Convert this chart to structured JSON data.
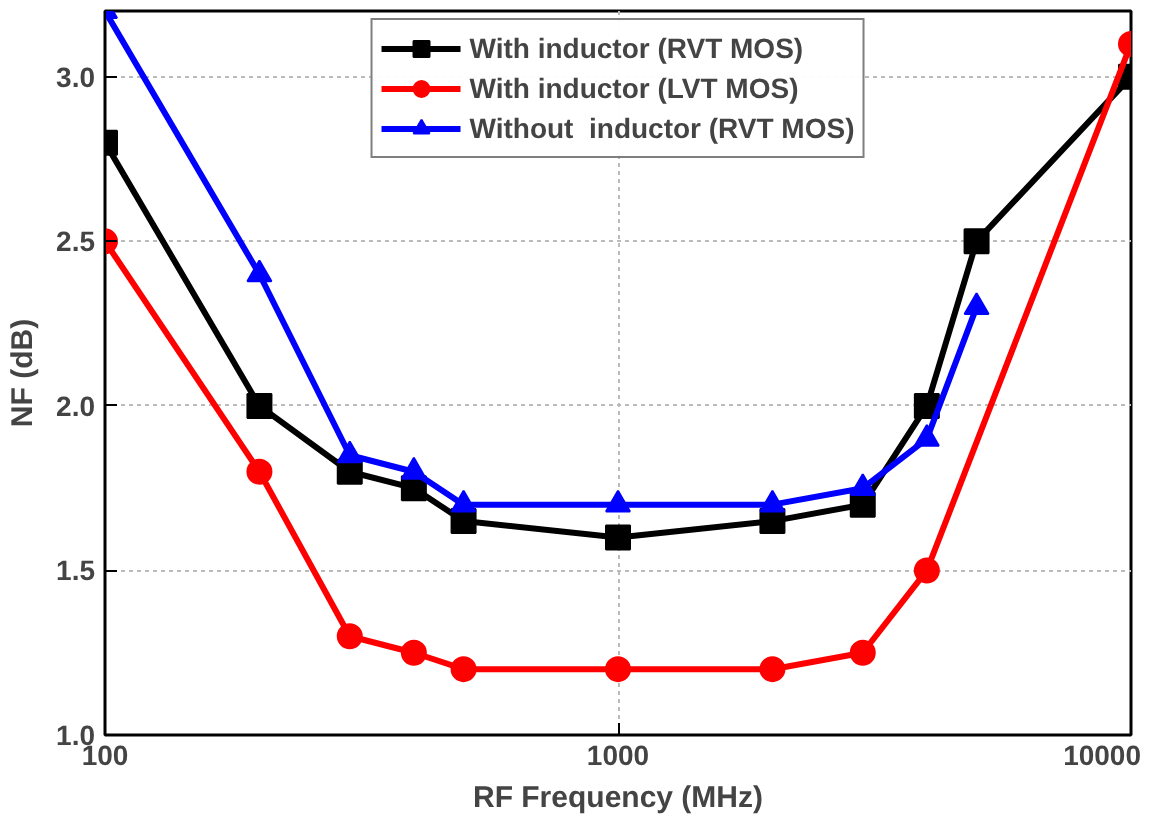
{
  "chart_data": {
    "type": "line",
    "xlabel": "RF Frequency (MHz)",
    "ylabel": "NF (dB)",
    "log": "x",
    "x": [
      100,
      200,
      300,
      400,
      500,
      1000,
      2000,
      3000,
      4000,
      5000,
      10000
    ],
    "series": [
      {
        "name": "With inductor (RVT MOS)",
        "color": "#000000",
        "marker": "square",
        "values": [
          2.8,
          2.0,
          1.8,
          1.75,
          1.65,
          1.6,
          1.65,
          1.7,
          2.0,
          2.5,
          3.0
        ]
      },
      {
        "name": "With inductor (LVT MOS)",
        "color": "#ff0000",
        "marker": "circle",
        "values": [
          2.5,
          1.8,
          1.3,
          1.25,
          1.2,
          1.2,
          1.2,
          1.25,
          1.5,
          null,
          3.1
        ]
      },
      {
        "name": "Without  inductor (RVT MOS)",
        "color": "#0000ff",
        "marker": "triangle",
        "values": [
          3.2,
          2.4,
          1.85,
          1.8,
          1.7,
          1.7,
          1.7,
          1.75,
          1.9,
          2.3,
          null
        ]
      }
    ],
    "xlim": [
      100,
      10000
    ],
    "ylim": [
      1.0,
      3.2
    ],
    "xticks": [
      100,
      1000,
      10000
    ],
    "yticks": [
      {
        "value": 1.0,
        "label": "1.0"
      },
      1.5,
      {
        "value": 2.0,
        "label": "2.0"
      },
      2.5,
      {
        "value": 3.0,
        "label": "3.0"
      }
    ],
    "grid": true,
    "legend": "top",
    "line_style": "solid"
  }
}
